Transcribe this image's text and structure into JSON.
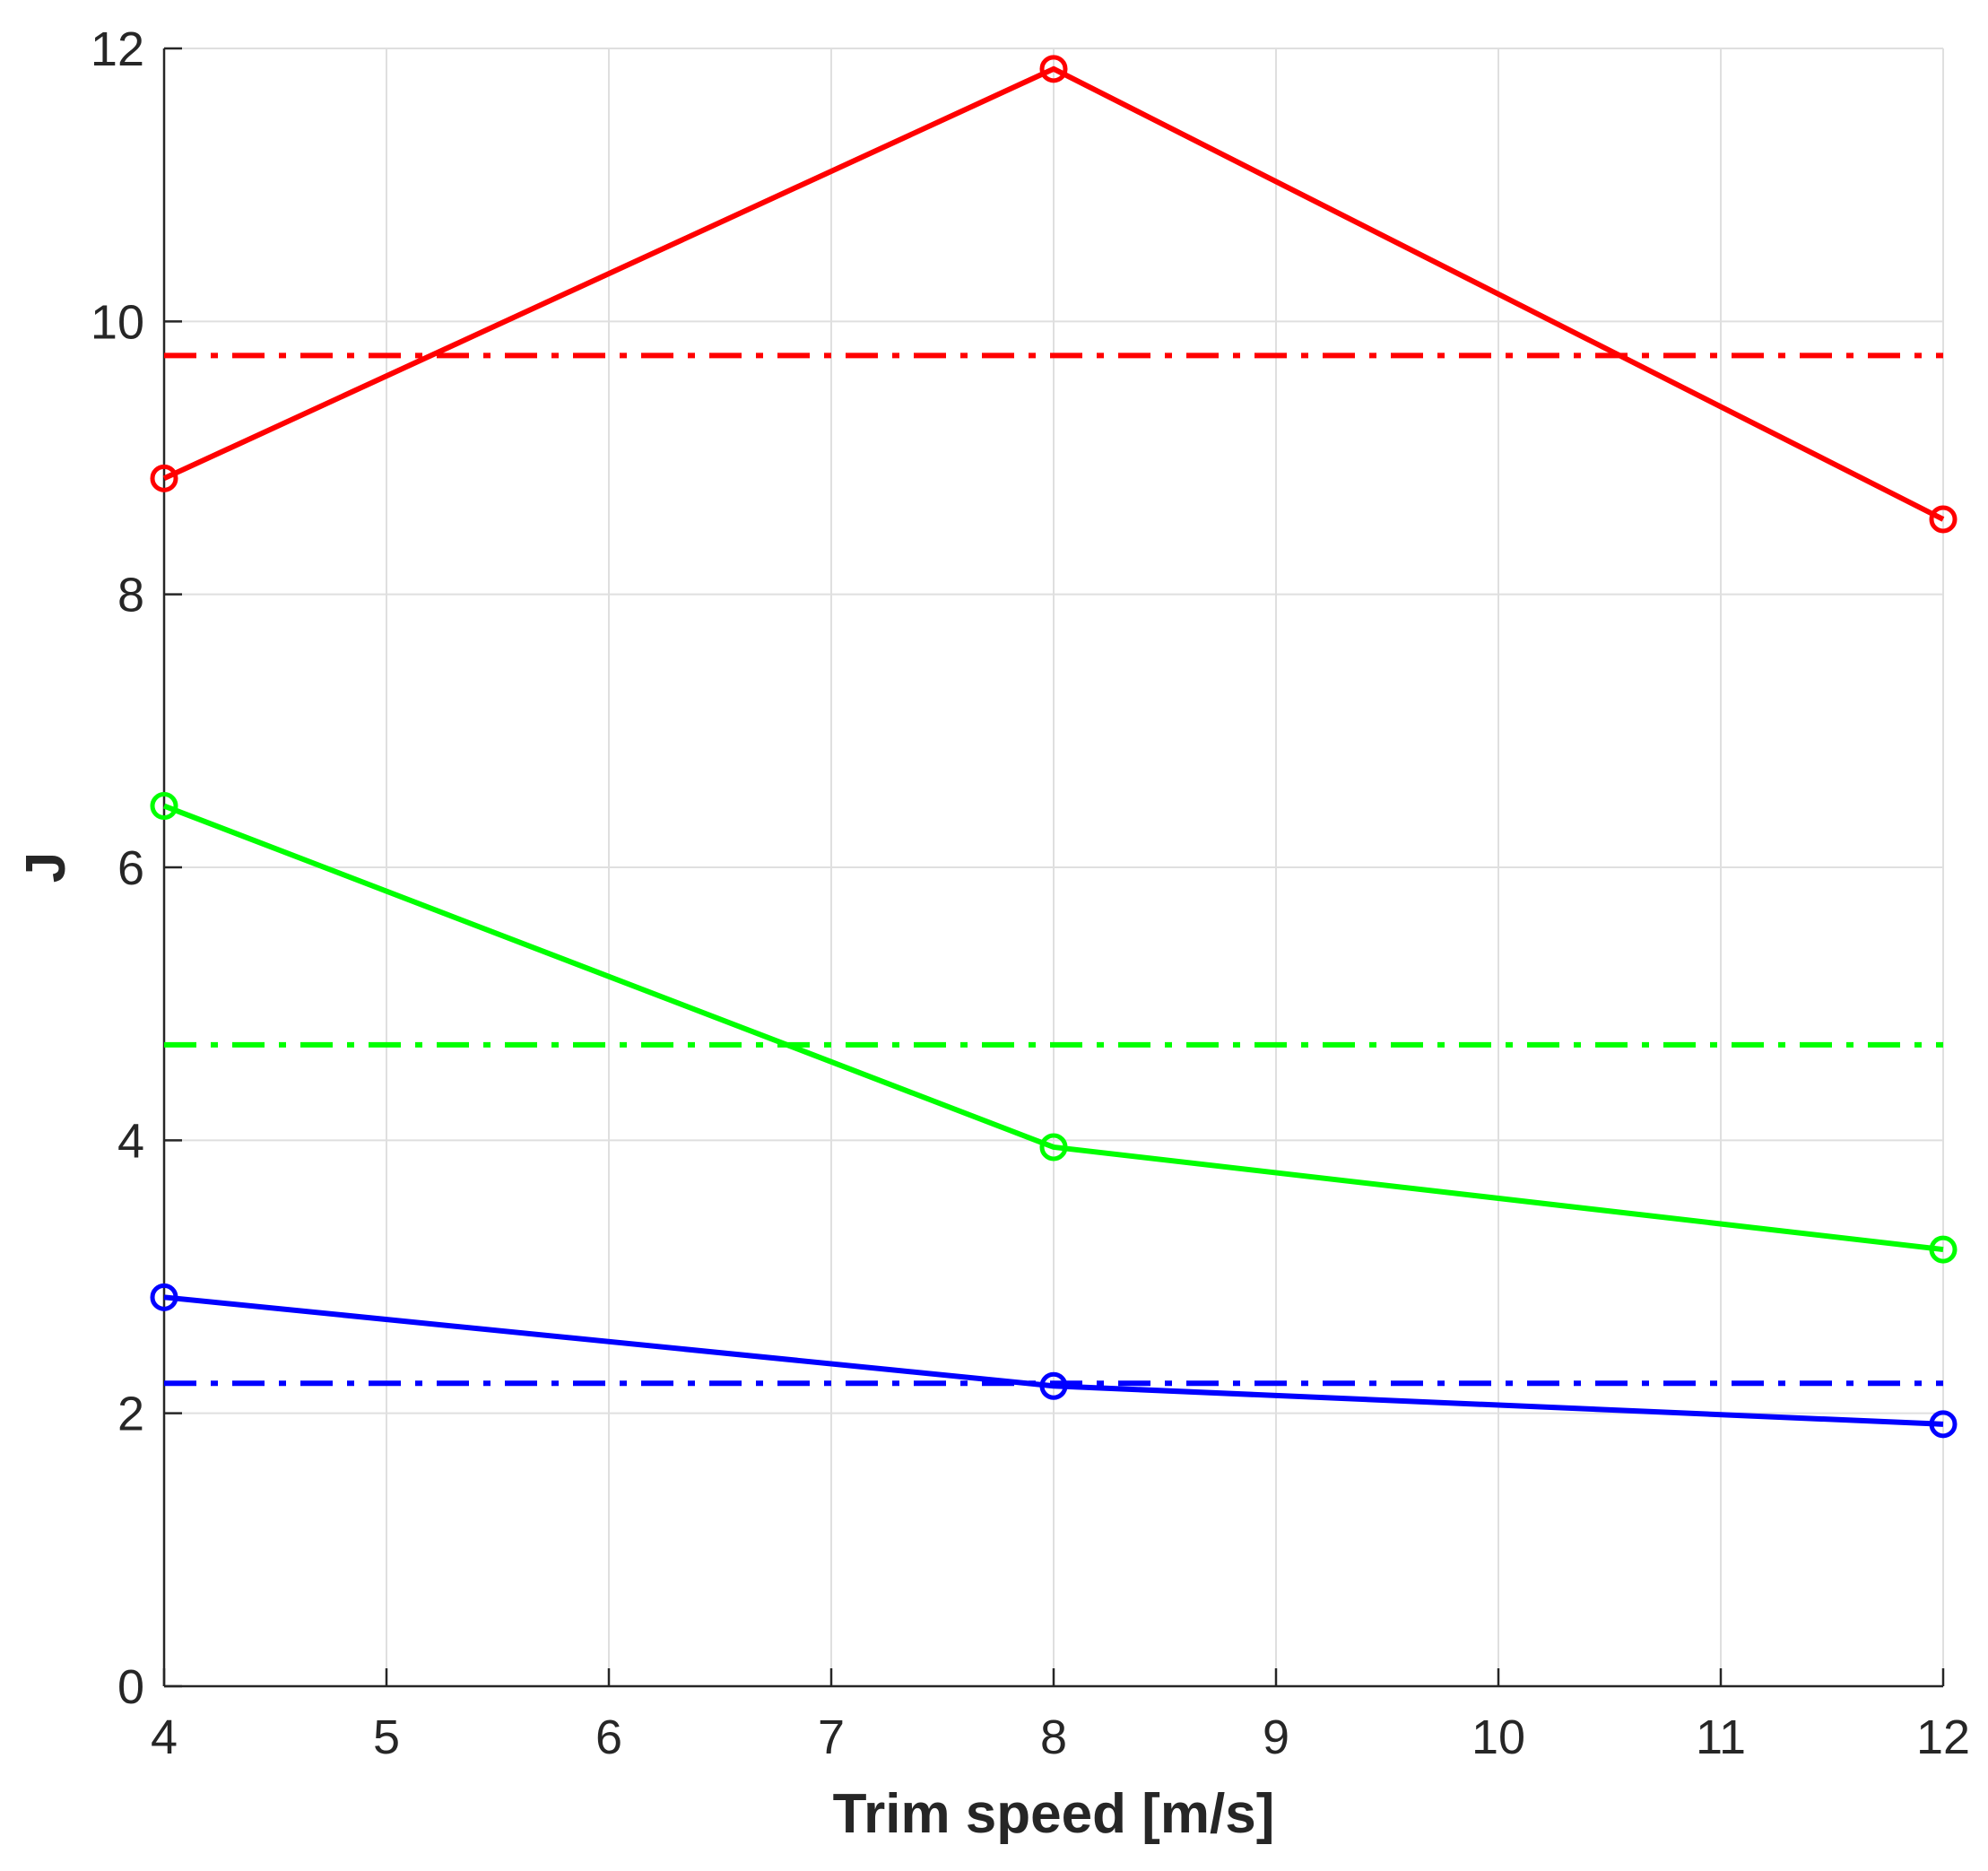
{
  "chart_data": {
    "type": "line",
    "title": "",
    "xlabel": "Trim speed [m/s]",
    "ylabel": "J",
    "xlim": [
      4,
      12
    ],
    "ylim": [
      0,
      12
    ],
    "xticks": [
      4,
      5,
      6,
      7,
      8,
      9,
      10,
      11,
      12
    ],
    "yticks": [
      0,
      2,
      4,
      6,
      8,
      10,
      12
    ],
    "grid": true,
    "legend": "none",
    "series": [
      {
        "name": "red",
        "color": "#ff0000",
        "style": "solid",
        "marker": "circle",
        "x": [
          4,
          8,
          12
        ],
        "values": [
          8.85,
          11.85,
          8.55
        ]
      },
      {
        "name": "green",
        "color": "#00ff00",
        "style": "solid",
        "marker": "circle",
        "x": [
          4,
          8,
          12
        ],
        "values": [
          6.45,
          3.95,
          3.2
        ]
      },
      {
        "name": "blue",
        "color": "#0000ff",
        "style": "solid",
        "marker": "circle",
        "x": [
          4,
          8,
          12
        ],
        "values": [
          2.85,
          2.2,
          1.92
        ]
      },
      {
        "name": "red-reference",
        "color": "#ff0000",
        "style": "dashdot",
        "marker": "none",
        "x": [
          4,
          12
        ],
        "values": [
          9.75,
          9.75
        ]
      },
      {
        "name": "green-reference",
        "color": "#00ff00",
        "style": "dashdot",
        "marker": "none",
        "x": [
          4,
          12
        ],
        "values": [
          4.7,
          4.7
        ]
      },
      {
        "name": "blue-reference",
        "color": "#0000ff",
        "style": "dashdot",
        "marker": "none",
        "x": [
          4,
          12
        ],
        "values": [
          2.22,
          2.22
        ]
      }
    ]
  }
}
